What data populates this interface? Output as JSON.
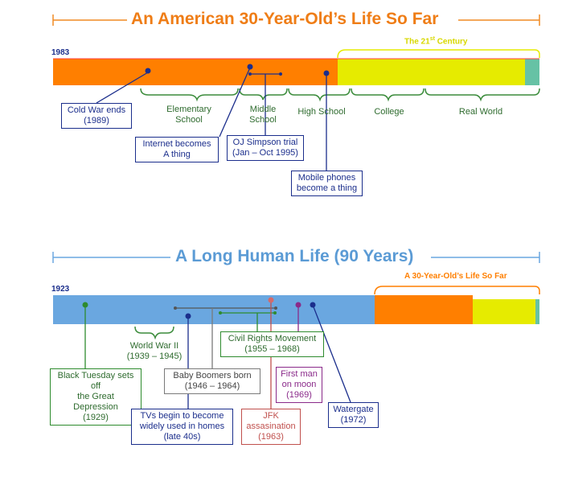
{
  "colors": {
    "orange": "#ff7f00",
    "yellow": "#e6eb00",
    "teal": "#66c2a5",
    "blue": "#6aa7e0",
    "navy": "#1b2e8c",
    "green": "#2e8b2e",
    "gray": "#7a7a7a",
    "brown": "#c0504d",
    "purple": "#8a2a8a",
    "bracket_green": "#3c8c3c",
    "title_blue": "#6aa7e0"
  },
  "top": {
    "title": "An American 30-Year-Old’s Life So Far",
    "start_year": "1983",
    "century_label": "The 21",
    "century_sup": "st",
    "century_suffix": " Century",
    "phases": [
      {
        "label": "Elementary\nSchool"
      },
      {
        "label": "Middle\nSchool"
      },
      {
        "label": "High School"
      },
      {
        "label": "College"
      },
      {
        "label": "Real World"
      }
    ],
    "events": [
      {
        "label": "Cold War ends\n(1989)"
      },
      {
        "label": "Internet becomes\nA thing"
      },
      {
        "label": "OJ Simpson trial\n(Jan – Oct 1995)"
      },
      {
        "label": "Mobile phones\nbecome a thing"
      }
    ]
  },
  "bottom": {
    "title": "A Long Human Life (90 Years)",
    "start_year": "1923",
    "overlay_label": "A 30-Year-Old’s Life So Far",
    "events": [
      {
        "label": "World War II\n(1939 – 1945)"
      },
      {
        "label": "Black Tuesday sets off\nthe Great Depression\n(1929)"
      },
      {
        "label": "Baby Boomers born\n(1946 – 1964)"
      },
      {
        "label": "TVs begin to become\nwidely used in homes\n(late 40s)"
      },
      {
        "label": "Civil Rights Movement\n(1955 – 1968)"
      },
      {
        "label": "JFK\nassasination\n(1963)"
      },
      {
        "label": "First man\non moon\n(1969)"
      },
      {
        "label": "Watergate\n(1972)"
      }
    ]
  }
}
